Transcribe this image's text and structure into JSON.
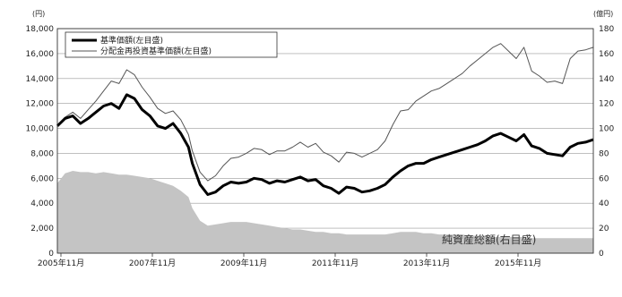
{
  "chart_data": {
    "type": "line",
    "title": "",
    "y_left_unit": "(円)",
    "y_right_unit": "(億円)",
    "x_categories": [
      "2005年11月",
      "2007年11月",
      "2009年11月",
      "2011年11月",
      "2013年11月",
      "2015年11月"
    ],
    "x_range": [
      "2005-11",
      "2017-06"
    ],
    "y_left_ticks": [
      "0",
      "2,000",
      "4,000",
      "6,000",
      "8,000",
      "10,000",
      "12,000",
      "14,000",
      "16,000",
      "18,000"
    ],
    "y_right_ticks": [
      "0",
      "20",
      "40",
      "60",
      "80",
      "100",
      "120",
      "140",
      "160",
      "180"
    ],
    "ylim_left": [
      0,
      18000
    ],
    "ylim_right": [
      0,
      180
    ],
    "grid": true,
    "legend_position": "top-left",
    "series": [
      {
        "name": "基準価額(左目盛)",
        "axis": "left",
        "color": "#000000",
        "style": "thick",
        "x": [
          "2005-11",
          "2006-01",
          "2006-03",
          "2006-05",
          "2006-07",
          "2006-09",
          "2006-11",
          "2007-01",
          "2007-03",
          "2007-05",
          "2007-07",
          "2007-09",
          "2007-11",
          "2008-01",
          "2008-03",
          "2008-05",
          "2008-07",
          "2008-09",
          "2008-10",
          "2008-12",
          "2009-02",
          "2009-04",
          "2009-06",
          "2009-08",
          "2009-10",
          "2009-12",
          "2010-02",
          "2010-04",
          "2010-06",
          "2010-08",
          "2010-10",
          "2010-12",
          "2011-02",
          "2011-04",
          "2011-06",
          "2011-08",
          "2011-10",
          "2011-12",
          "2012-02",
          "2012-04",
          "2012-06",
          "2012-08",
          "2012-10",
          "2012-12",
          "2013-02",
          "2013-04",
          "2013-06",
          "2013-08",
          "2013-10",
          "2013-12",
          "2014-02",
          "2014-04",
          "2014-06",
          "2014-08",
          "2014-10",
          "2014-12",
          "2015-02",
          "2015-04",
          "2015-06",
          "2015-08",
          "2015-10",
          "2015-12",
          "2016-02",
          "2016-04",
          "2016-06",
          "2016-08",
          "2016-10",
          "2016-12",
          "2017-02",
          "2017-04",
          "2017-06"
        ],
        "values": [
          10200,
          10800,
          11000,
          10400,
          10800,
          11300,
          11800,
          12000,
          11600,
          12700,
          12400,
          11500,
          11000,
          10200,
          10000,
          10400,
          9600,
          8500,
          7200,
          5500,
          4700,
          4900,
          5400,
          5700,
          5600,
          5700,
          6000,
          5900,
          5600,
          5800,
          5700,
          5900,
          6100,
          5800,
          5900,
          5400,
          5200,
          4800,
          5300,
          5200,
          4900,
          5000,
          5200,
          5500,
          6100,
          6600,
          7000,
          7200,
          7200,
          7500,
          7700,
          7900,
          8100,
          8300,
          8500,
          8700,
          9000,
          9400,
          9600,
          9300,
          9000,
          9500,
          8600,
          8400,
          8000,
          7900,
          7800,
          8500,
          8800,
          8900,
          9100
        ]
      },
      {
        "name": "分配金再投資基準価額(左目盛)",
        "axis": "left",
        "color": "#555555",
        "style": "thin",
        "x": [
          "2005-11",
          "2006-01",
          "2006-03",
          "2006-05",
          "2006-07",
          "2006-09",
          "2006-11",
          "2007-01",
          "2007-03",
          "2007-05",
          "2007-07",
          "2007-09",
          "2007-11",
          "2008-01",
          "2008-03",
          "2008-05",
          "2008-07",
          "2008-09",
          "2008-10",
          "2008-12",
          "2009-02",
          "2009-04",
          "2009-06",
          "2009-08",
          "2009-10",
          "2009-12",
          "2010-02",
          "2010-04",
          "2010-06",
          "2010-08",
          "2010-10",
          "2010-12",
          "2011-02",
          "2011-04",
          "2011-06",
          "2011-08",
          "2011-10",
          "2011-12",
          "2012-02",
          "2012-04",
          "2012-06",
          "2012-08",
          "2012-10",
          "2012-12",
          "2013-02",
          "2013-04",
          "2013-06",
          "2013-08",
          "2013-10",
          "2013-12",
          "2014-02",
          "2014-04",
          "2014-06",
          "2014-08",
          "2014-10",
          "2014-12",
          "2015-02",
          "2015-04",
          "2015-06",
          "2015-08",
          "2015-10",
          "2015-12",
          "2016-02",
          "2016-04",
          "2016-06",
          "2016-08",
          "2016-10",
          "2016-12",
          "2017-02",
          "2017-04",
          "2017-06"
        ],
        "values": [
          10200,
          10900,
          11300,
          10800,
          11500,
          12200,
          13000,
          13800,
          13600,
          14700,
          14300,
          13300,
          12500,
          11600,
          11200,
          11400,
          10700,
          9500,
          8200,
          6500,
          5800,
          6200,
          7000,
          7600,
          7700,
          8000,
          8400,
          8300,
          7900,
          8200,
          8200,
          8500,
          8900,
          8500,
          8800,
          8100,
          7800,
          7300,
          8100,
          8000,
          7700,
          8000,
          8300,
          9000,
          10300,
          11400,
          11500,
          12200,
          12600,
          13000,
          13200,
          13600,
          14000,
          14400,
          15000,
          15500,
          16000,
          16500,
          16800,
          16200,
          15600,
          16500,
          14600,
          14200,
          13700,
          13800,
          13600,
          15600,
          16200,
          16300,
          16500
        ]
      }
    ],
    "area_series": {
      "name": "純資産総額(右目盛)",
      "axis": "right",
      "color": "#c4c4c4",
      "x": [
        "2005-11",
        "2006-01",
        "2006-03",
        "2006-05",
        "2006-07",
        "2006-09",
        "2006-11",
        "2007-01",
        "2007-03",
        "2007-05",
        "2007-07",
        "2007-09",
        "2007-11",
        "2008-01",
        "2008-03",
        "2008-05",
        "2008-07",
        "2008-09",
        "2008-10",
        "2008-12",
        "2009-02",
        "2009-04",
        "2009-06",
        "2009-08",
        "2009-10",
        "2009-12",
        "2010-02",
        "2010-04",
        "2010-06",
        "2010-08",
        "2010-10",
        "2010-12",
        "2011-02",
        "2011-04",
        "2011-06",
        "2011-08",
        "2011-10",
        "2011-12",
        "2012-02",
        "2012-04",
        "2012-06",
        "2012-08",
        "2012-10",
        "2012-12",
        "2013-02",
        "2013-04",
        "2013-06",
        "2013-08",
        "2013-10",
        "2013-12",
        "2014-02",
        "2014-04",
        "2014-06",
        "2014-08",
        "2014-10",
        "2014-12",
        "2015-02",
        "2015-04",
        "2015-06",
        "2015-08",
        "2015-10",
        "2015-12",
        "2016-02",
        "2016-04",
        "2016-06",
        "2016-08",
        "2016-10",
        "2016-12",
        "2017-02",
        "2017-04",
        "2017-06"
      ],
      "values": [
        56,
        64,
        66,
        65,
        65,
        64,
        65,
        64,
        63,
        63,
        62,
        61,
        60,
        58,
        56,
        54,
        50,
        45,
        36,
        26,
        22,
        23,
        24,
        25,
        25,
        25,
        24,
        23,
        22,
        21,
        20,
        19,
        19,
        18,
        17,
        17,
        16,
        16,
        15,
        15,
        15,
        15,
        15,
        15,
        16,
        17,
        17,
        17,
        16,
        16,
        15,
        15,
        15,
        15,
        14,
        14,
        14,
        13,
        13,
        13,
        13,
        13,
        12,
        12,
        12,
        12,
        12,
        12,
        12,
        12,
        12
      ]
    }
  }
}
